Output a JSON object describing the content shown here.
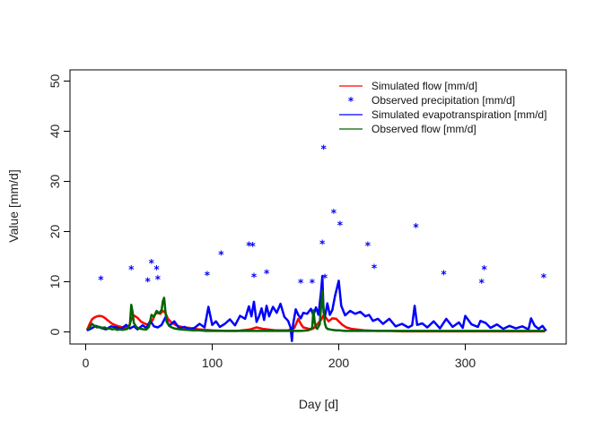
{
  "chart_data": {
    "type": "line",
    "xlabel": "Day [d]",
    "ylabel": "Value [mm/d]",
    "xlim": [
      0,
      365
    ],
    "ylim": [
      0,
      50
    ],
    "xticks": [
      0,
      100,
      200,
      300
    ],
    "yticks": [
      0,
      10,
      20,
      30,
      40,
      50
    ],
    "grid": false,
    "legend_position": "top-right",
    "series": [
      {
        "name": "Simulated flow [mm/d]",
        "style": "line",
        "color": "#ff0000",
        "x": [
          1,
          3,
          5,
          7,
          9,
          11,
          13,
          15,
          17,
          19,
          21,
          23,
          25,
          28,
          31,
          34,
          36,
          38,
          41,
          44,
          47,
          50,
          53,
          55,
          57,
          59,
          61,
          63,
          65,
          68,
          71,
          74,
          78,
          82,
          86,
          90,
          95,
          100,
          110,
          120,
          130,
          135,
          140,
          150,
          160,
          165,
          168,
          170,
          172,
          175,
          178,
          180,
          183,
          186,
          188,
          190,
          192,
          195,
          198,
          200,
          203,
          206,
          210,
          220,
          230,
          240,
          250,
          260,
          270,
          280,
          290,
          300,
          310,
          320,
          330,
          340,
          350,
          355,
          360,
          363
        ],
        "values": [
          0.3,
          1.5,
          2.5,
          2.9,
          3.1,
          3.2,
          3.1,
          2.8,
          2.4,
          2.0,
          1.6,
          1.4,
          1.2,
          1.0,
          0.8,
          0.9,
          2.5,
          3.3,
          2.8,
          2.0,
          1.6,
          1.4,
          2.4,
          3.6,
          3.8,
          3.6,
          4.2,
          3.8,
          2.6,
          1.8,
          1.4,
          1.1,
          0.9,
          0.8,
          0.6,
          0.5,
          0.4,
          0.3,
          0.2,
          0.2,
          0.5,
          0.9,
          0.6,
          0.3,
          0.3,
          0.8,
          2.6,
          1.6,
          0.9,
          0.7,
          0.5,
          0.7,
          1.5,
          2.4,
          3.3,
          2.8,
          2.1,
          2.7,
          2.6,
          2.1,
          1.4,
          0.9,
          0.6,
          0.3,
          0.2,
          0.2,
          0.1,
          0.1,
          0.1,
          0.1,
          0.1,
          0.1,
          0.1,
          0.1,
          0.1,
          0.1,
          0.1,
          0.1,
          0.1,
          0.1
        ]
      },
      {
        "name": "Observed precipitation [mm/d]",
        "style": "points",
        "marker": "*",
        "color": "#0000ff",
        "x": [
          12,
          36,
          49,
          52,
          56,
          57,
          96,
          107,
          129,
          132,
          133,
          143,
          170,
          179,
          187,
          188,
          189,
          196,
          201,
          223,
          228,
          261,
          283,
          313,
          315,
          362
        ],
        "values": [
          10.5,
          12.6,
          10.2,
          13.8,
          12.6,
          10.6,
          11.4,
          15.5,
          17.3,
          17.2,
          11.1,
          11.8,
          9.9,
          9.9,
          17.7,
          36.6,
          10.9,
          23.8,
          21.4,
          17.3,
          12.9,
          21.0,
          11.6,
          9.9,
          12.6,
          11.0
        ]
      },
      {
        "name": "Simulated evapotranspiration [mm/d]",
        "style": "line",
        "color": "#0000ff",
        "x": [
          1,
          4,
          8,
          12,
          16,
          20,
          24,
          28,
          32,
          35,
          38,
          41,
          45,
          48,
          51,
          54,
          57,
          60,
          63,
          66,
          70,
          74,
          78,
          82,
          86,
          90,
          94,
          97,
          100,
          103,
          106,
          110,
          114,
          118,
          122,
          126,
          129,
          131,
          133,
          135,
          137,
          139,
          141,
          143,
          145,
          148,
          151,
          154,
          157,
          160,
          162,
          163,
          164,
          166,
          168,
          170,
          172,
          175,
          178,
          180,
          182,
          184,
          186,
          187,
          188,
          189,
          191,
          193,
          195,
          197,
          200,
          202,
          205,
          209,
          213,
          217,
          221,
          224,
          227,
          231,
          235,
          240,
          245,
          250,
          255,
          258,
          260,
          262,
          266,
          270,
          275,
          280,
          285,
          290,
          295,
          298,
          300,
          305,
          310,
          312,
          316,
          320,
          325,
          330,
          335,
          340,
          345,
          350,
          352,
          355,
          358,
          361,
          364
        ],
        "values": [
          0.3,
          0.6,
          1.2,
          0.8,
          0.5,
          1.1,
          0.9,
          0.6,
          1.4,
          0.7,
          1.1,
          0.5,
          1.3,
          0.8,
          2.2,
          1.1,
          0.9,
          1.4,
          2.9,
          1.2,
          2.1,
          0.7,
          1.0,
          0.5,
          0.8,
          1.6,
          0.9,
          5.0,
          1.4,
          2.1,
          1.0,
          1.6,
          2.5,
          1.3,
          3.2,
          2.6,
          5.1,
          3.1,
          6.0,
          2.0,
          3.1,
          4.7,
          2.4,
          5.2,
          3.1,
          5.0,
          3.8,
          5.6,
          3.0,
          2.2,
          0.8,
          -1.8,
          1.6,
          4.5,
          3.4,
          2.7,
          3.8,
          3.6,
          4.6,
          3.3,
          4.9,
          3.4,
          8.0,
          11.1,
          4.0,
          2.9,
          5.7,
          3.4,
          4.4,
          7.1,
          10.2,
          5.2,
          3.3,
          4.2,
          3.6,
          4.0,
          3.1,
          3.4,
          2.2,
          2.6,
          1.6,
          2.6,
          1.1,
          1.6,
          0.9,
          1.3,
          5.2,
          1.4,
          1.7,
          0.9,
          2.1,
          0.7,
          2.6,
          1.0,
          1.9,
          0.8,
          3.2,
          1.5,
          1.0,
          2.2,
          1.8,
          0.8,
          1.5,
          0.6,
          1.2,
          0.7,
          1.1,
          0.5,
          2.7,
          1.2,
          0.6,
          1.2,
          0.2
        ]
      },
      {
        "name": "Observed flow [mm/d]",
        "style": "line",
        "color": "#006400",
        "x": [
          1,
          3,
          5,
          7,
          9,
          11,
          13,
          15,
          17,
          19,
          21,
          23,
          25,
          27,
          29,
          31,
          33,
          35,
          36,
          37,
          38,
          40,
          42,
          44,
          46,
          48,
          50,
          52,
          54,
          56,
          58,
          60,
          61,
          62,
          63,
          64,
          66,
          68,
          70,
          72,
          75,
          80,
          85,
          90,
          95,
          100,
          110,
          120,
          130,
          140,
          150,
          160,
          170,
          176,
          179,
          180,
          181,
          182,
          183,
          185,
          186,
          187,
          188,
          189,
          190,
          191,
          193,
          195,
          198,
          200,
          205,
          210,
          220,
          240,
          260,
          280,
          300,
          320,
          340,
          360,
          363
        ],
        "values": [
          0.5,
          0.8,
          1.6,
          1.2,
          0.9,
          1.0,
          0.8,
          0.9,
          0.6,
          0.7,
          0.5,
          0.6,
          0.4,
          0.5,
          0.4,
          0.5,
          0.6,
          1.5,
          5.4,
          4.0,
          1.8,
          1.0,
          0.7,
          0.6,
          0.5,
          0.5,
          1.0,
          3.4,
          3.0,
          4.2,
          3.7,
          4.4,
          6.1,
          6.8,
          4.2,
          2.0,
          1.2,
          0.9,
          0.7,
          0.6,
          0.5,
          0.4,
          0.3,
          0.3,
          0.2,
          0.2,
          0.2,
          0.2,
          0.2,
          0.2,
          0.2,
          0.2,
          0.2,
          0.3,
          0.8,
          4.3,
          2.0,
          0.9,
          0.6,
          1.5,
          5.0,
          8.2,
          4.5,
          1.7,
          0.9,
          0.6,
          0.5,
          0.4,
          0.3,
          0.3,
          0.2,
          0.2,
          0.2,
          0.2,
          0.2,
          0.2,
          0.2,
          0.2,
          0.2,
          0.2,
          0.2
        ]
      }
    ]
  }
}
